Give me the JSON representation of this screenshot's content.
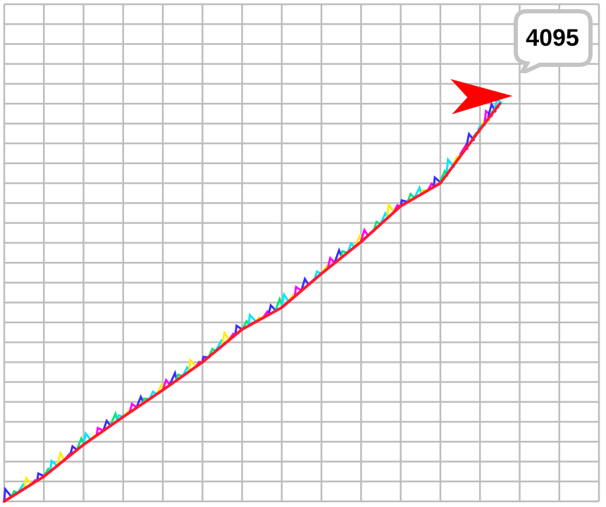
{
  "chart_data": {
    "type": "line",
    "title": "",
    "xlabel": "",
    "ylabel": "",
    "xlim": [
      0,
      15
    ],
    "ylim": [
      0,
      25
    ],
    "grid": true,
    "colors": {
      "grid": "#bdbdbd",
      "line": "#ff1a2e",
      "arrow": "#ff0000",
      "callout_border": "#c4c4c4",
      "noise": [
        "#3a2cff",
        "#00e676",
        "#00e5ff",
        "#ffee00",
        "#ff00ff"
      ]
    },
    "series": [
      {
        "values": [
          {
            "x": 0.0,
            "y": 0.0
          },
          {
            "x": 1.0,
            "y": 1.25
          },
          {
            "x": 2.0,
            "y": 2.85
          },
          {
            "x": 3.0,
            "y": 4.25
          },
          {
            "x": 4.0,
            "y": 5.6
          },
          {
            "x": 5.0,
            "y": 7.0
          },
          {
            "x": 6.0,
            "y": 8.65
          },
          {
            "x": 7.0,
            "y": 9.75
          },
          {
            "x": 8.0,
            "y": 11.45
          },
          {
            "x": 9.0,
            "y": 13.05
          },
          {
            "x": 10.0,
            "y": 14.85
          },
          {
            "x": 11.0,
            "y": 16.0
          },
          {
            "x": 12.0,
            "y": 18.7
          },
          {
            "x": 12.5,
            "y": 20.0
          }
        ]
      }
    ],
    "annotation": {
      "text": "4095",
      "marker": "red-arrow",
      "target_x": 12.5,
      "target_y": 20.0
    }
  }
}
